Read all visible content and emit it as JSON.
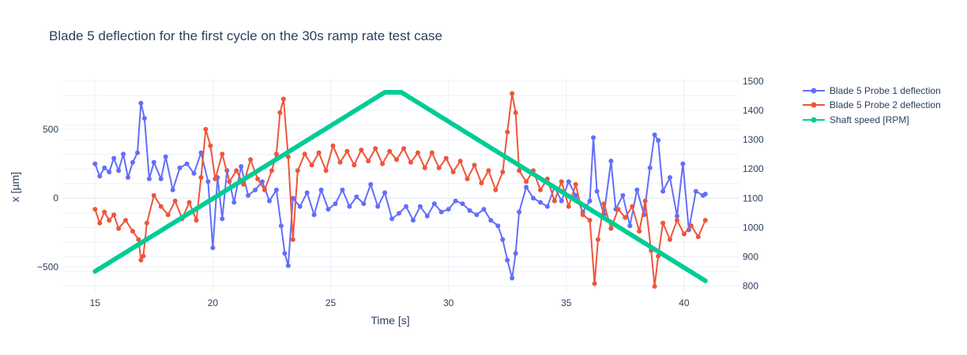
{
  "chart_data": {
    "type": "line",
    "title": "Blade 5 deflection for the first cycle on the 30s ramp rate test case",
    "xlabel": "Time [s]",
    "ylabel": "x [µm]",
    "y2label": "",
    "xlim": [
      13.65,
      42.35
    ],
    "ylim": [
      -680,
      860
    ],
    "y2lim": [
      780,
      1505
    ],
    "xticks": [
      15,
      20,
      25,
      30,
      35,
      40
    ],
    "yticks": [
      -500,
      0,
      500
    ],
    "y2ticks": [
      800,
      900,
      1000,
      1100,
      1200,
      1300,
      1400,
      1500
    ],
    "legend_position": "top-right, outside plot",
    "series": [
      {
        "name": "Blade 5 Probe 1 deflection",
        "color": "#636efa",
        "axis": "y",
        "mode": "lines+markers",
        "points": [
          [
            15.0,
            250
          ],
          [
            15.2,
            160
          ],
          [
            15.4,
            220
          ],
          [
            15.6,
            190
          ],
          [
            15.8,
            290
          ],
          [
            16.0,
            200
          ],
          [
            16.2,
            320
          ],
          [
            16.4,
            150
          ],
          [
            16.6,
            260
          ],
          [
            16.8,
            330
          ],
          [
            16.95,
            690
          ],
          [
            17.1,
            580
          ],
          [
            17.3,
            140
          ],
          [
            17.5,
            260
          ],
          [
            17.8,
            140
          ],
          [
            18.0,
            300
          ],
          [
            18.3,
            60
          ],
          [
            18.6,
            220
          ],
          [
            18.9,
            250
          ],
          [
            19.2,
            180
          ],
          [
            19.5,
            330
          ],
          [
            19.8,
            120
          ],
          [
            20.0,
            -360
          ],
          [
            20.2,
            150
          ],
          [
            20.4,
            -150
          ],
          [
            20.6,
            200
          ],
          [
            20.9,
            -30
          ],
          [
            21.2,
            230
          ],
          [
            21.5,
            20
          ],
          [
            21.8,
            60
          ],
          [
            22.1,
            120
          ],
          [
            22.4,
            -20
          ],
          [
            22.7,
            60
          ],
          [
            22.9,
            -200
          ],
          [
            23.05,
            -400
          ],
          [
            23.2,
            -490
          ],
          [
            23.4,
            0
          ],
          [
            23.7,
            -60
          ],
          [
            24.0,
            40
          ],
          [
            24.3,
            -120
          ],
          [
            24.6,
            60
          ],
          [
            24.9,
            -80
          ],
          [
            25.2,
            -40
          ],
          [
            25.5,
            60
          ],
          [
            25.8,
            -60
          ],
          [
            26.1,
            10
          ],
          [
            26.4,
            -40
          ],
          [
            26.7,
            100
          ],
          [
            27.0,
            -60
          ],
          [
            27.3,
            40
          ],
          [
            27.6,
            -150
          ],
          [
            27.9,
            -110
          ],
          [
            28.2,
            -60
          ],
          [
            28.5,
            -160
          ],
          [
            28.8,
            -60
          ],
          [
            29.1,
            -130
          ],
          [
            29.4,
            -40
          ],
          [
            29.7,
            -100
          ],
          [
            30.0,
            -80
          ],
          [
            30.3,
            -20
          ],
          [
            30.6,
            -40
          ],
          [
            30.9,
            -90
          ],
          [
            31.2,
            -120
          ],
          [
            31.5,
            -80
          ],
          [
            31.8,
            -160
          ],
          [
            32.1,
            -200
          ],
          [
            32.3,
            -300
          ],
          [
            32.5,
            -450
          ],
          [
            32.7,
            -580
          ],
          [
            32.85,
            -400
          ],
          [
            33.0,
            -100
          ],
          [
            33.3,
            80
          ],
          [
            33.6,
            0
          ],
          [
            33.9,
            -30
          ],
          [
            34.2,
            -60
          ],
          [
            34.5,
            80
          ],
          [
            34.8,
            -20
          ],
          [
            35.1,
            120
          ],
          [
            35.4,
            20
          ],
          [
            35.7,
            -100
          ],
          [
            36.0,
            -20
          ],
          [
            36.15,
            440
          ],
          [
            36.3,
            50
          ],
          [
            36.6,
            -120
          ],
          [
            36.9,
            270
          ],
          [
            37.1,
            -80
          ],
          [
            37.4,
            20
          ],
          [
            37.7,
            -200
          ],
          [
            38.0,
            60
          ],
          [
            38.3,
            -120
          ],
          [
            38.55,
            220
          ],
          [
            38.75,
            460
          ],
          [
            38.9,
            420
          ],
          [
            39.1,
            50
          ],
          [
            39.4,
            150
          ],
          [
            39.7,
            -130
          ],
          [
            39.95,
            250
          ],
          [
            40.2,
            -230
          ],
          [
            40.5,
            50
          ],
          [
            40.8,
            20
          ],
          [
            40.9,
            30
          ]
        ]
      },
      {
        "name": "Blade 5 Probe 2 deflection",
        "color": "#ef553b",
        "axis": "y",
        "mode": "lines+markers",
        "points": [
          [
            15.0,
            -80
          ],
          [
            15.2,
            -180
          ],
          [
            15.4,
            -100
          ],
          [
            15.6,
            -160
          ],
          [
            15.8,
            -120
          ],
          [
            16.0,
            -220
          ],
          [
            16.3,
            -160
          ],
          [
            16.6,
            -240
          ],
          [
            16.85,
            -300
          ],
          [
            16.95,
            -450
          ],
          [
            17.05,
            -420
          ],
          [
            17.2,
            -180
          ],
          [
            17.5,
            20
          ],
          [
            17.8,
            -60
          ],
          [
            18.1,
            -120
          ],
          [
            18.4,
            -20
          ],
          [
            18.7,
            -150
          ],
          [
            19.0,
            -30
          ],
          [
            19.3,
            -160
          ],
          [
            19.5,
            150
          ],
          [
            19.7,
            500
          ],
          [
            19.9,
            380
          ],
          [
            20.1,
            140
          ],
          [
            20.4,
            320
          ],
          [
            20.7,
            120
          ],
          [
            21.0,
            200
          ],
          [
            21.3,
            100
          ],
          [
            21.6,
            280
          ],
          [
            21.9,
            140
          ],
          [
            22.2,
            60
          ],
          [
            22.5,
            200
          ],
          [
            22.7,
            320
          ],
          [
            22.85,
            620
          ],
          [
            23.0,
            720
          ],
          [
            23.2,
            300
          ],
          [
            23.4,
            -300
          ],
          [
            23.6,
            200
          ],
          [
            23.9,
            320
          ],
          [
            24.2,
            240
          ],
          [
            24.5,
            330
          ],
          [
            24.8,
            200
          ],
          [
            25.1,
            380
          ],
          [
            25.4,
            260
          ],
          [
            25.7,
            340
          ],
          [
            26.0,
            240
          ],
          [
            26.3,
            350
          ],
          [
            26.6,
            270
          ],
          [
            26.9,
            360
          ],
          [
            27.2,
            250
          ],
          [
            27.5,
            340
          ],
          [
            27.8,
            280
          ],
          [
            28.1,
            360
          ],
          [
            28.4,
            260
          ],
          [
            28.7,
            330
          ],
          [
            29.0,
            220
          ],
          [
            29.3,
            330
          ],
          [
            29.6,
            220
          ],
          [
            29.9,
            290
          ],
          [
            30.2,
            190
          ],
          [
            30.5,
            270
          ],
          [
            30.8,
            140
          ],
          [
            31.1,
            240
          ],
          [
            31.4,
            110
          ],
          [
            31.7,
            200
          ],
          [
            32.0,
            60
          ],
          [
            32.3,
            190
          ],
          [
            32.5,
            480
          ],
          [
            32.7,
            760
          ],
          [
            32.85,
            620
          ],
          [
            33.0,
            200
          ],
          [
            33.3,
            120
          ],
          [
            33.6,
            200
          ],
          [
            33.9,
            60
          ],
          [
            34.2,
            140
          ],
          [
            34.5,
            -20
          ],
          [
            34.8,
            120
          ],
          [
            35.1,
            -60
          ],
          [
            35.4,
            100
          ],
          [
            35.7,
            -120
          ],
          [
            36.0,
            -160
          ],
          [
            36.2,
            -620
          ],
          [
            36.35,
            -300
          ],
          [
            36.6,
            -40
          ],
          [
            36.9,
            -220
          ],
          [
            37.2,
            -80
          ],
          [
            37.5,
            -140
          ],
          [
            37.8,
            -60
          ],
          [
            38.1,
            -240
          ],
          [
            38.35,
            -20
          ],
          [
            38.6,
            -380
          ],
          [
            38.75,
            -640
          ],
          [
            38.9,
            -420
          ],
          [
            39.1,
            -180
          ],
          [
            39.4,
            -300
          ],
          [
            39.7,
            -160
          ],
          [
            40.0,
            -260
          ],
          [
            40.3,
            -200
          ],
          [
            40.6,
            -280
          ],
          [
            40.9,
            -160
          ]
        ]
      },
      {
        "name": "Shaft speed [RPM]",
        "color": "#00cc96",
        "axis": "y2",
        "mode": "lines+markers",
        "points": [
          [
            15.0,
            850
          ],
          [
            27.3,
            1462
          ],
          [
            28.0,
            1462
          ],
          [
            40.9,
            818
          ]
        ]
      }
    ]
  }
}
